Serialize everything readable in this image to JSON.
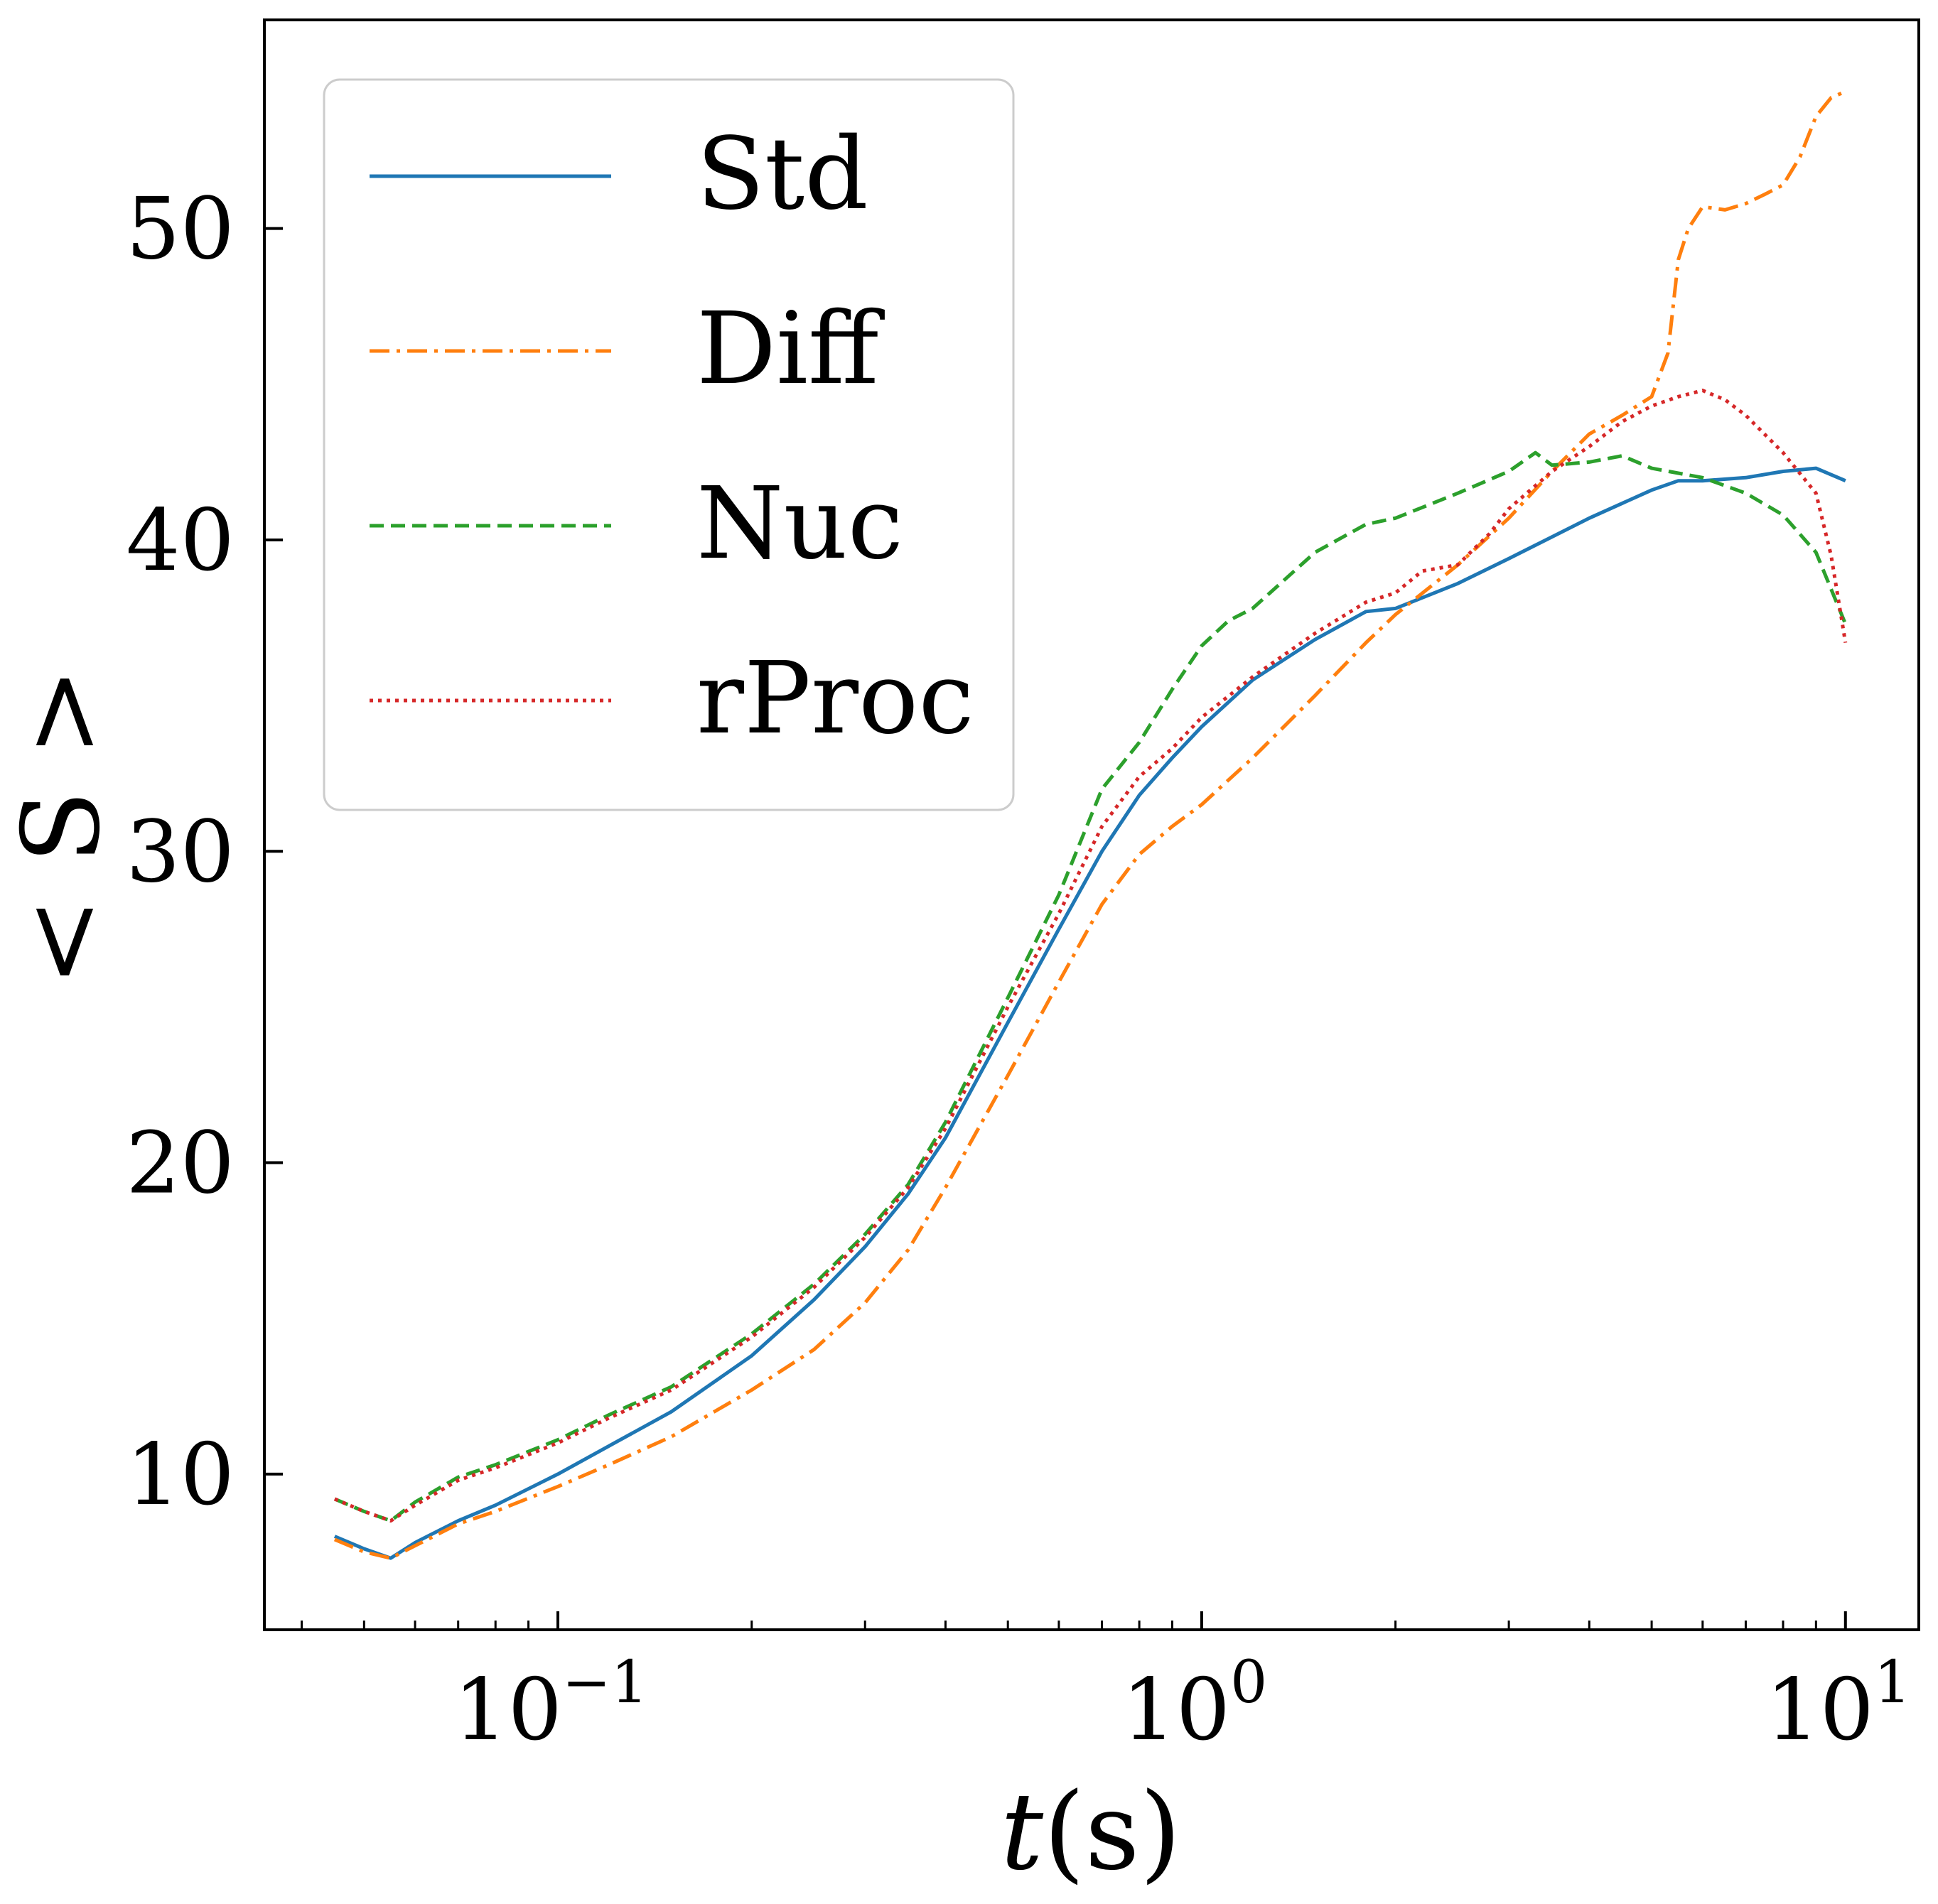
{
  "chart_data": {
    "type": "line",
    "xlabel": "t(s)",
    "xlabel_italic": "t",
    "xlabel_unit": "(s)",
    "ylabel": "< S >",
    "x_scale": "log",
    "xlim": [
      0.035,
      13
    ],
    "ylim": [
      5,
      56.7
    ],
    "x_ticks": [
      {
        "value": 0.1,
        "base": "10",
        "exp": "−1"
      },
      {
        "value": 1,
        "base": "10",
        "exp": "0"
      },
      {
        "value": 10,
        "base": "10",
        "exp": "1"
      }
    ],
    "y_ticks": [
      {
        "value": 10,
        "label": "10"
      },
      {
        "value": 20,
        "label": "20"
      },
      {
        "value": 30,
        "label": "30"
      },
      {
        "value": 40,
        "label": "40"
      },
      {
        "value": 50,
        "label": "50"
      }
    ],
    "grid": false,
    "legend_position": "top-left",
    "series": [
      {
        "name": "Std",
        "color": "#1f77b4",
        "dash": "solid",
        "x": [
          0.045,
          0.05,
          0.055,
          0.06,
          0.07,
          0.08,
          0.1,
          0.12,
          0.15,
          0.2,
          0.25,
          0.3,
          0.35,
          0.4,
          0.5,
          0.6,
          0.7,
          0.8,
          0.9,
          1.0,
          1.2,
          1.5,
          1.8,
          2.0,
          2.5,
          3.0,
          4.0,
          5.0,
          5.5,
          6.0,
          7.0,
          8.0,
          9.0,
          10.0
        ],
        "values": [
          8.0,
          7.6,
          7.3,
          7.8,
          8.5,
          9.0,
          10.0,
          10.9,
          12.0,
          13.8,
          15.6,
          17.3,
          19.0,
          20.8,
          24.5,
          27.5,
          30.0,
          31.8,
          33.0,
          34.0,
          35.5,
          36.8,
          37.7,
          37.8,
          38.6,
          39.4,
          40.7,
          41.6,
          41.9,
          41.9,
          42.0,
          42.2,
          42.3,
          41.9
        ]
      },
      {
        "name": "Diff",
        "color": "#ff7f0e",
        "dash": "dashdot",
        "x": [
          0.045,
          0.05,
          0.055,
          0.06,
          0.07,
          0.08,
          0.1,
          0.12,
          0.15,
          0.2,
          0.25,
          0.3,
          0.35,
          0.4,
          0.5,
          0.6,
          0.7,
          0.8,
          0.9,
          1.0,
          1.2,
          1.5,
          1.8,
          2.0,
          2.5,
          3.0,
          3.5,
          4.0,
          4.5,
          5.0,
          5.3,
          5.5,
          5.7,
          6.0,
          6.5,
          7.0,
          7.5,
          8.0,
          8.5,
          9.0,
          9.5,
          10.0
        ],
        "values": [
          7.9,
          7.5,
          7.3,
          7.7,
          8.4,
          8.8,
          9.6,
          10.3,
          11.2,
          12.7,
          14.0,
          15.5,
          17.2,
          19.2,
          22.8,
          25.8,
          28.3,
          29.9,
          30.8,
          31.5,
          33.0,
          35.0,
          36.7,
          37.6,
          39.2,
          40.7,
          42.2,
          43.4,
          44.0,
          44.6,
          46.0,
          49.0,
          50.0,
          50.7,
          50.6,
          50.8,
          51.1,
          51.4,
          52.3,
          53.6,
          54.2,
          54.4
        ]
      },
      {
        "name": "Nuc",
        "color": "#2ca02c",
        "dash": "dashed",
        "x": [
          0.045,
          0.05,
          0.055,
          0.06,
          0.07,
          0.08,
          0.1,
          0.12,
          0.15,
          0.2,
          0.25,
          0.3,
          0.35,
          0.4,
          0.5,
          0.6,
          0.7,
          0.8,
          0.9,
          1.0,
          1.1,
          1.2,
          1.5,
          1.8,
          2.0,
          2.5,
          3.0,
          3.3,
          3.5,
          4.0,
          4.5,
          5.0,
          6.0,
          7.0,
          8.0,
          9.0,
          10.0
        ],
        "values": [
          9.2,
          8.8,
          8.5,
          9.1,
          9.9,
          10.3,
          11.1,
          11.9,
          12.8,
          14.5,
          16.1,
          17.7,
          19.3,
          21.3,
          25.3,
          28.6,
          32.0,
          33.5,
          35.2,
          36.6,
          37.4,
          37.8,
          39.6,
          40.5,
          40.7,
          41.5,
          42.2,
          42.8,
          42.4,
          42.5,
          42.7,
          42.3,
          42.0,
          41.5,
          40.8,
          39.6,
          37.3
        ]
      },
      {
        "name": "rProc",
        "color": "#d62728",
        "dash": "dotted",
        "x": [
          0.045,
          0.05,
          0.055,
          0.06,
          0.07,
          0.08,
          0.1,
          0.12,
          0.15,
          0.2,
          0.25,
          0.3,
          0.35,
          0.4,
          0.5,
          0.6,
          0.7,
          0.8,
          0.9,
          1.0,
          1.2,
          1.5,
          1.8,
          2.0,
          2.2,
          2.5,
          2.8,
          3.0,
          3.5,
          4.0,
          4.5,
          5.0,
          5.5,
          6.0,
          6.5,
          7.0,
          8.0,
          9.0,
          9.5,
          10.0
        ],
        "values": [
          9.2,
          8.8,
          8.5,
          9.0,
          9.8,
          10.2,
          11.0,
          11.8,
          12.7,
          14.4,
          16.0,
          17.6,
          19.2,
          21.1,
          25.0,
          28.0,
          30.8,
          32.4,
          33.3,
          34.3,
          35.6,
          37.0,
          38.0,
          38.3,
          39.0,
          39.2,
          40.2,
          41.0,
          42.2,
          43.0,
          43.8,
          44.3,
          44.6,
          44.8,
          44.5,
          44.0,
          42.8,
          41.5,
          39.5,
          36.7
        ]
      }
    ]
  }
}
